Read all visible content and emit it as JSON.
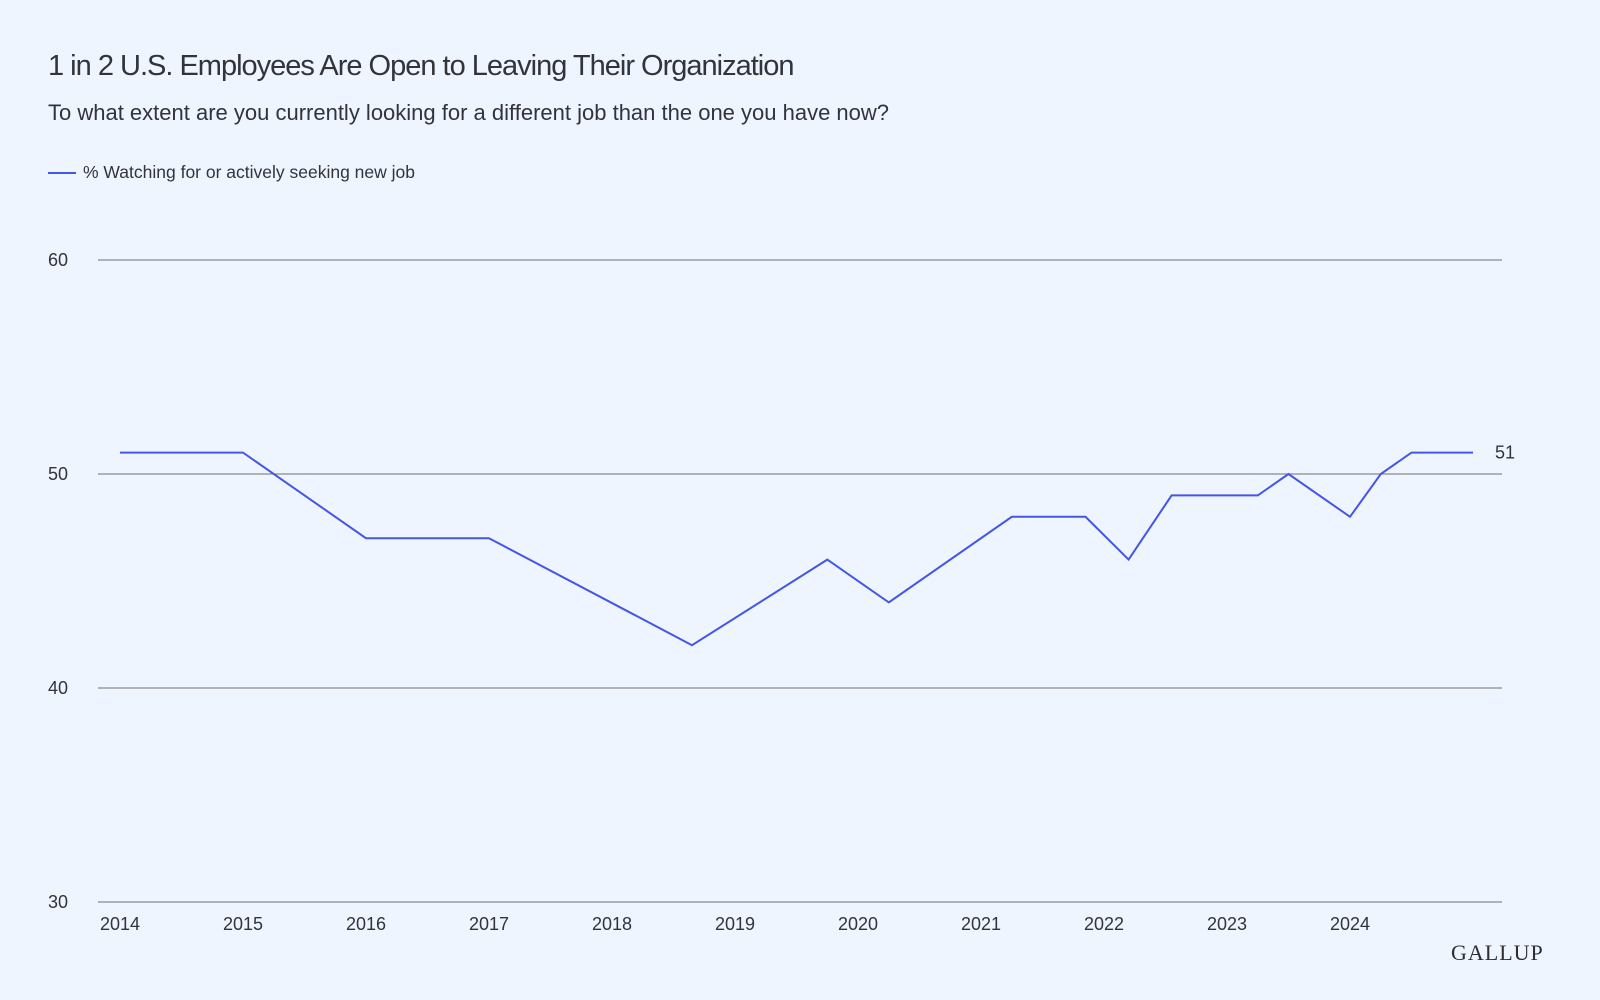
{
  "chart_data": {
    "type": "line",
    "title": "1 in 2 U.S. Employees Are Open to Leaving Their Organization",
    "subtitle": "To what extent are you currently looking for a different job than the one you have now?",
    "xlabel": "",
    "ylabel": "",
    "x_ticks": [
      "2014",
      "2015",
      "2016",
      "2017",
      "2018",
      "2019",
      "2020",
      "2021",
      "2022",
      "2023",
      "2024"
    ],
    "xlim": [
      2014,
      2025.1
    ],
    "y_ticks": [
      30,
      40,
      50,
      60
    ],
    "ylim": [
      30,
      60
    ],
    "grid": "horizontal",
    "legend_position": "top-left",
    "series": [
      {
        "name": "% Watching for or actively seeking new job",
        "color": "#4456E6",
        "points": [
          {
            "x": 2014.0,
            "y": 51
          },
          {
            "x": 2015.0,
            "y": 51
          },
          {
            "x": 2016.0,
            "y": 47
          },
          {
            "x": 2017.0,
            "y": 47
          },
          {
            "x": 2018.65,
            "y": 42
          },
          {
            "x": 2019.75,
            "y": 46
          },
          {
            "x": 2020.25,
            "y": 44
          },
          {
            "x": 2021.25,
            "y": 48
          },
          {
            "x": 2021.85,
            "y": 48
          },
          {
            "x": 2022.2,
            "y": 46
          },
          {
            "x": 2022.55,
            "y": 49
          },
          {
            "x": 2023.25,
            "y": 49
          },
          {
            "x": 2023.5,
            "y": 50
          },
          {
            "x": 2024.0,
            "y": 48
          },
          {
            "x": 2024.25,
            "y": 50
          },
          {
            "x": 2024.5,
            "y": 51
          },
          {
            "x": 2025.0,
            "y": 51
          }
        ],
        "end_label": "51"
      }
    ]
  },
  "brand": "GALLUP",
  "colors": {
    "background": "#EEF5FF",
    "gridline": "#8a8a8a",
    "text": "#33333a",
    "series": "#4456E6"
  }
}
